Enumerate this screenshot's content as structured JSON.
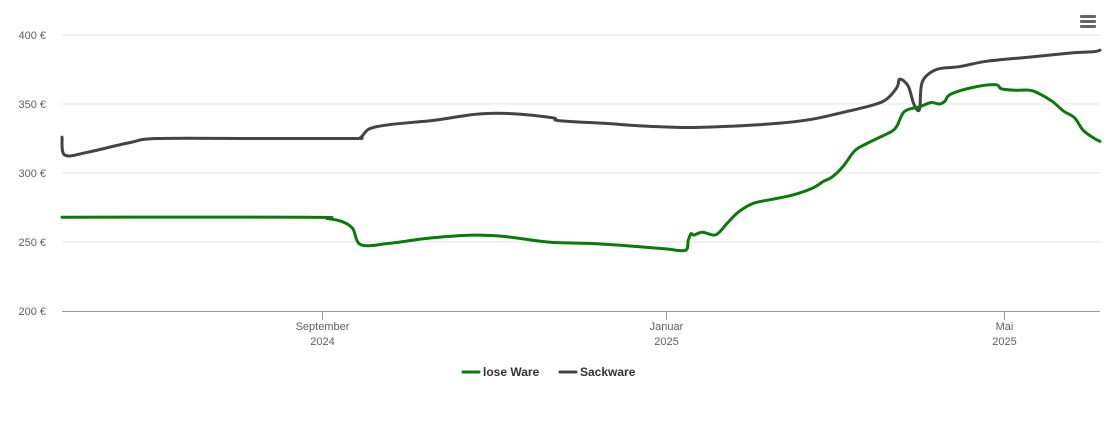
{
  "chart_data": {
    "type": "line",
    "title": "",
    "xlabel": "",
    "ylabel": "",
    "y_unit": "€",
    "ylim": [
      200,
      400
    ],
    "y_ticks": [
      200,
      250,
      300,
      350,
      400
    ],
    "y_tick_labels": [
      "200 €",
      "250 €",
      "300 €",
      "350 €",
      "400 €"
    ],
    "xlim": [
      "2024-06-01",
      "2025-06-04"
    ],
    "x_ticks": [
      {
        "date": "2024-09-01",
        "line1": "September",
        "line2": "2024"
      },
      {
        "date": "2025-01-01",
        "line1": "Januar",
        "line2": "2025"
      },
      {
        "date": "2025-05-01",
        "line1": "Mai",
        "line2": "2025"
      }
    ],
    "grid": true,
    "legend": "bottom-center",
    "series": [
      {
        "name": "lose Ware",
        "color": "#0a7a0a",
        "points": [
          [
            "2024-06-01",
            268
          ],
          [
            "2024-08-27",
            268
          ],
          [
            "2024-09-03",
            267
          ],
          [
            "2024-09-08",
            265
          ],
          [
            "2024-09-12",
            260
          ],
          [
            "2024-09-15",
            248
          ],
          [
            "2024-09-25",
            249
          ],
          [
            "2024-10-10",
            253
          ],
          [
            "2024-10-25",
            255
          ],
          [
            "2024-11-05",
            254
          ],
          [
            "2024-11-20",
            250
          ],
          [
            "2024-12-05",
            249
          ],
          [
            "2024-12-20",
            247
          ],
          [
            "2025-01-01",
            245
          ],
          [
            "2025-01-08",
            244
          ],
          [
            "2025-01-09",
            251
          ],
          [
            "2025-01-10",
            256
          ],
          [
            "2025-01-11",
            255
          ],
          [
            "2025-01-14",
            257
          ],
          [
            "2025-01-18",
            255
          ],
          [
            "2025-01-20",
            257
          ],
          [
            "2025-01-23",
            264
          ],
          [
            "2025-01-27",
            272
          ],
          [
            "2025-02-01",
            278
          ],
          [
            "2025-02-08",
            281
          ],
          [
            "2025-02-15",
            284
          ],
          [
            "2025-02-22",
            289
          ],
          [
            "2025-02-26",
            294
          ],
          [
            "2025-03-01",
            297
          ],
          [
            "2025-03-05",
            305
          ],
          [
            "2025-03-09",
            316
          ],
          [
            "2025-03-13",
            321
          ],
          [
            "2025-03-18",
            326
          ],
          [
            "2025-03-22",
            330
          ],
          [
            "2025-03-24",
            334
          ],
          [
            "2025-03-26",
            343
          ],
          [
            "2025-03-28",
            346
          ],
          [
            "2025-04-01",
            348
          ],
          [
            "2025-04-05",
            351
          ],
          [
            "2025-04-08",
            350
          ],
          [
            "2025-04-10",
            352
          ],
          [
            "2025-04-12",
            357
          ],
          [
            "2025-04-20",
            362
          ],
          [
            "2025-04-28",
            364
          ],
          [
            "2025-04-30",
            361
          ],
          [
            "2025-05-05",
            360
          ],
          [
            "2025-05-10",
            360
          ],
          [
            "2025-05-13",
            358
          ],
          [
            "2025-05-18",
            352
          ],
          [
            "2025-05-22",
            345
          ],
          [
            "2025-05-26",
            340
          ],
          [
            "2025-05-29",
            331
          ],
          [
            "2025-06-02",
            325
          ],
          [
            "2025-06-04",
            323
          ]
        ]
      },
      {
        "name": "Sackware",
        "color": "#434348",
        "points": [
          [
            "2024-06-01",
            326
          ],
          [
            "2024-06-02",
            313
          ],
          [
            "2024-06-10",
            315
          ],
          [
            "2024-06-25",
            322
          ],
          [
            "2024-07-05",
            325
          ],
          [
            "2024-08-10",
            325
          ],
          [
            "2024-09-12",
            325
          ],
          [
            "2024-09-15",
            326
          ],
          [
            "2024-09-18",
            332
          ],
          [
            "2024-09-25",
            335
          ],
          [
            "2024-10-10",
            338
          ],
          [
            "2024-10-20",
            341
          ],
          [
            "2024-10-28",
            343
          ],
          [
            "2024-11-08",
            343
          ],
          [
            "2024-11-22",
            340
          ],
          [
            "2024-11-24",
            338
          ],
          [
            "2024-12-10",
            336
          ],
          [
            "2024-12-25",
            334
          ],
          [
            "2025-01-10",
            333
          ],
          [
            "2025-01-25",
            334
          ],
          [
            "2025-02-10",
            336
          ],
          [
            "2025-02-22",
            339
          ],
          [
            "2025-03-05",
            344
          ],
          [
            "2025-03-15",
            349
          ],
          [
            "2025-03-20",
            353
          ],
          [
            "2025-03-24",
            362
          ],
          [
            "2025-03-25",
            368
          ],
          [
            "2025-03-28",
            363
          ],
          [
            "2025-03-30",
            350
          ],
          [
            "2025-04-01",
            346
          ],
          [
            "2025-04-02",
            366
          ],
          [
            "2025-04-07",
            375
          ],
          [
            "2025-04-15",
            377
          ],
          [
            "2025-04-25",
            381
          ],
          [
            "2025-05-10",
            384
          ],
          [
            "2025-05-25",
            387
          ],
          [
            "2025-06-02",
            388
          ],
          [
            "2025-06-04",
            389
          ]
        ]
      }
    ]
  },
  "toolbar": {
    "menu_icon": "hamburger-menu-icon"
  }
}
